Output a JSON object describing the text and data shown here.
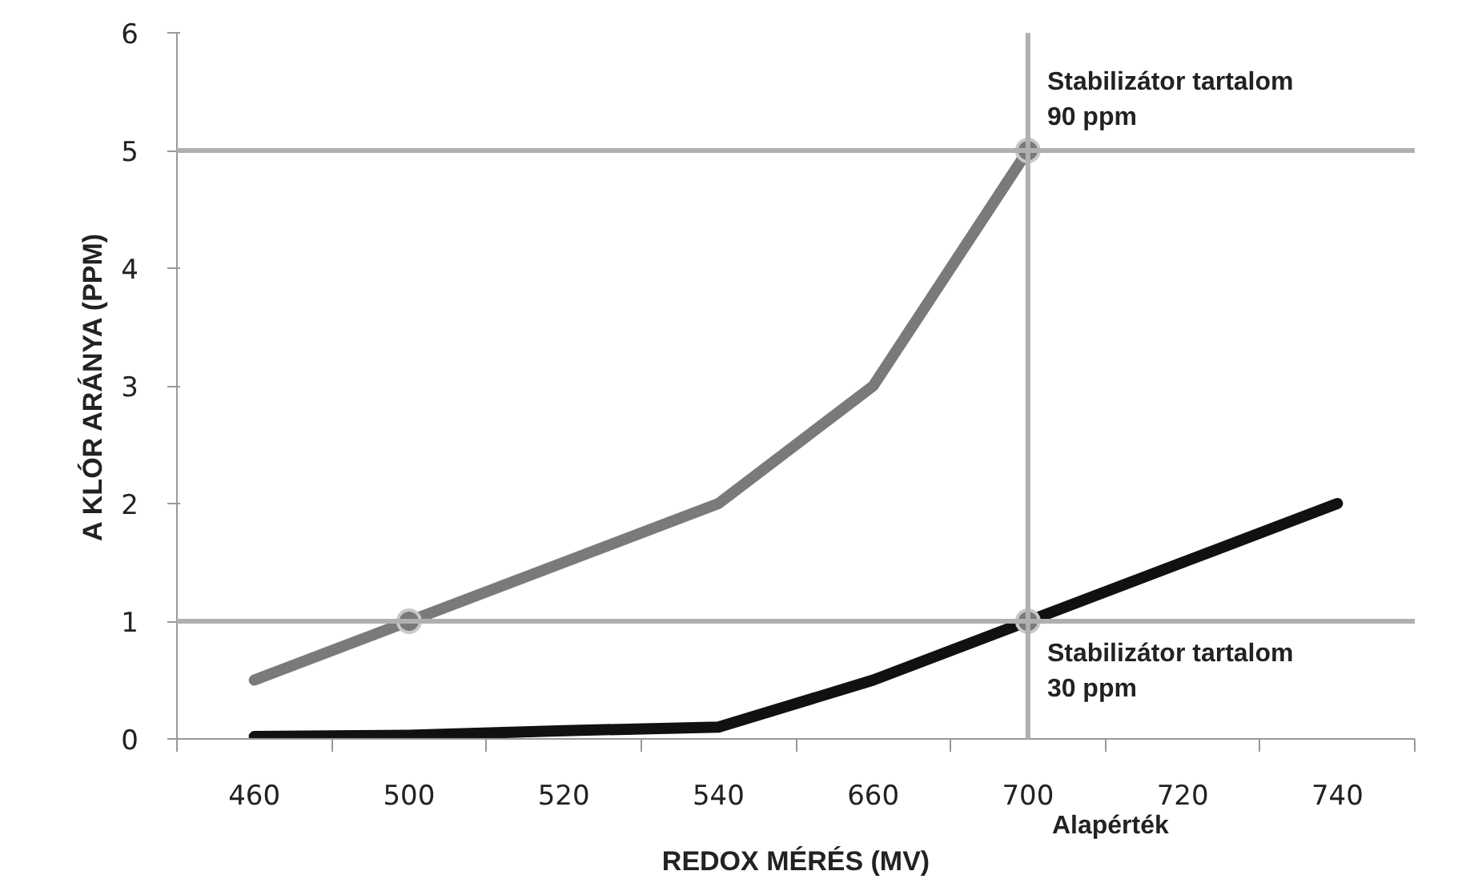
{
  "chart_data": {
    "type": "line",
    "xlabel": "REDOX MÉRÉS (MV)",
    "ylabel": "A KLÓR ARÁNYA (PPM)",
    "categories": [
      "460",
      "500",
      "520",
      "540",
      "660",
      "700",
      "720",
      "740"
    ],
    "series": [
      {
        "color": "#7a7a7a",
        "values": [
          0.5,
          1.0,
          1.5,
          2.0,
          3.0,
          5.0,
          null,
          null
        ]
      },
      {
        "color": "#111111",
        "values": [
          0.02,
          0.03,
          0.07,
          0.1,
          0.5,
          1.0,
          1.5,
          2.0
        ]
      },
      {
        "type": "scatter",
        "marker": "circle",
        "color": "#7a7a7a",
        "x": [
          "500",
          "700",
          "700"
        ],
        "values": [
          1,
          5,
          1
        ]
      }
    ],
    "ylim": [
      0,
      6
    ],
    "yticks": [
      0,
      1,
      2,
      3,
      4,
      5,
      6
    ],
    "ref_lines": [
      {
        "axis": "y",
        "value": 5,
        "color": "#b0b0b0"
      },
      {
        "axis": "y",
        "value": 1,
        "color": "#b0b0b0"
      },
      {
        "axis": "x",
        "value": "700",
        "color": "#b0b0b0"
      }
    ],
    "annotations": [
      {
        "text": "Stabilizátor tartalom\n90 ppm",
        "x": "700",
        "y": 5
      },
      {
        "text": "Stabilizátor tartalom\n30 ppm",
        "x": "700",
        "y": 1
      },
      "Alapérték"
    ],
    "grid": false,
    "line_style": "solid"
  }
}
